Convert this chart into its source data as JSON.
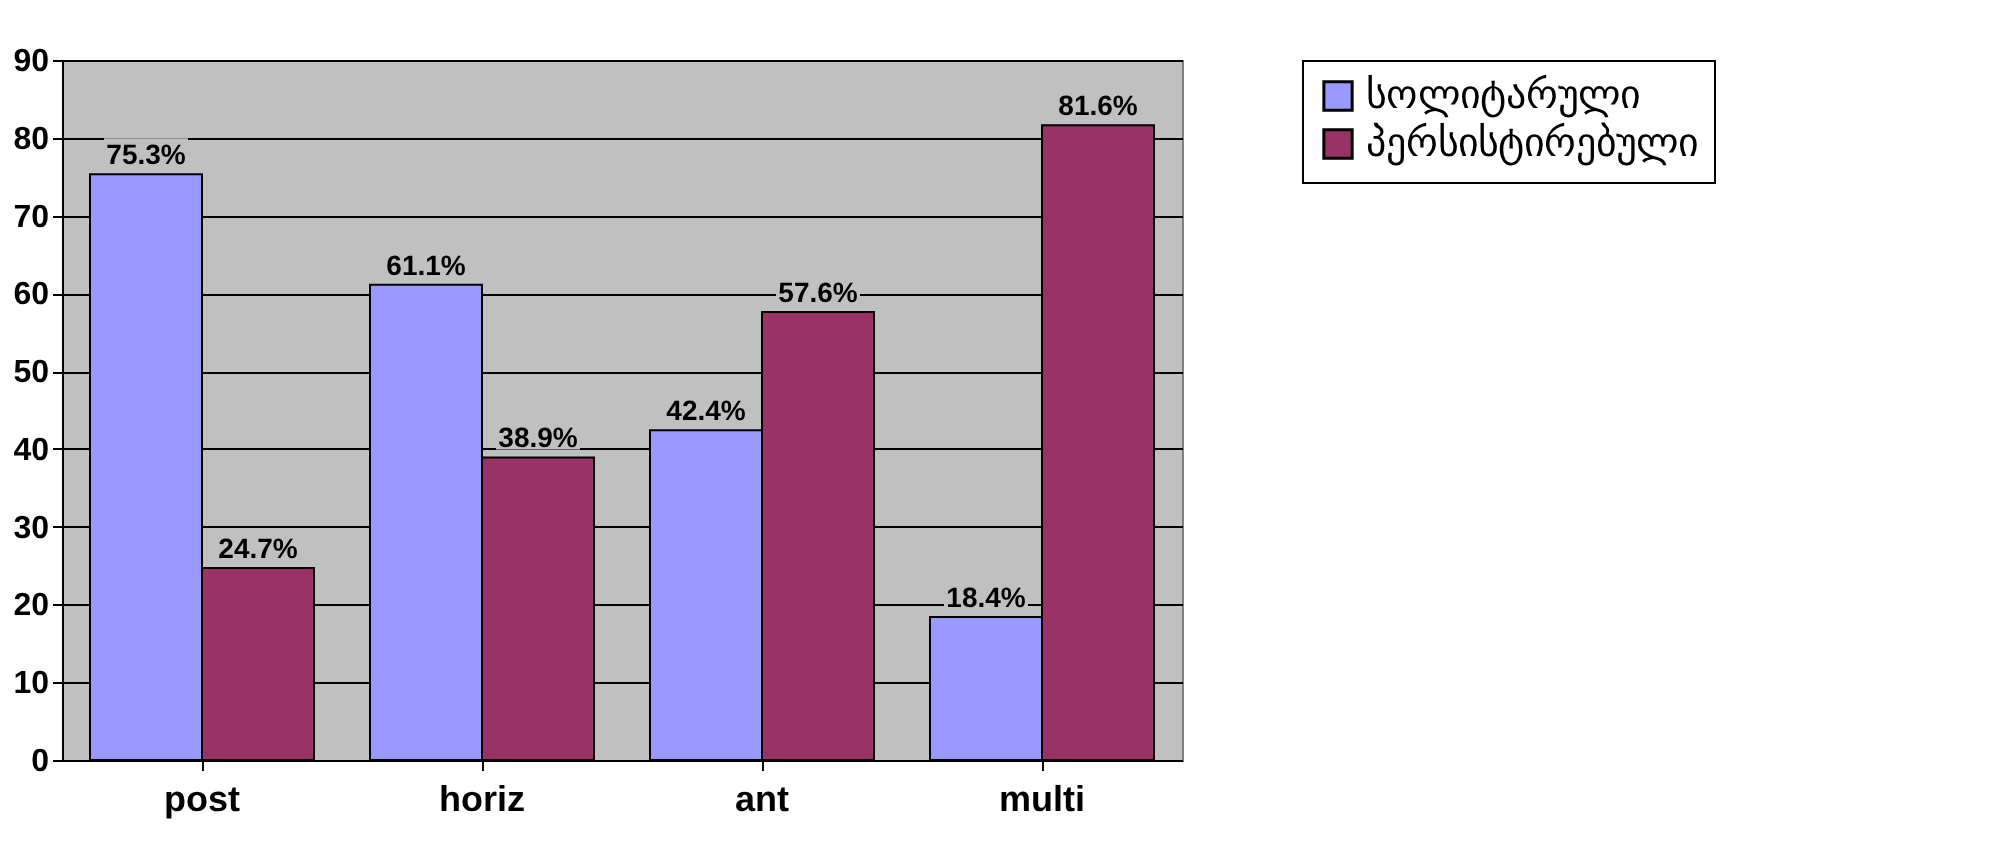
{
  "chart_data": {
    "type": "bar",
    "categories": [
      "post",
      "horiz",
      "ant",
      "multi"
    ],
    "series": [
      {
        "name": "სოლიტარული",
        "color": "#9999ff",
        "values": [
          75.3,
          61.1,
          42.4,
          18.4
        ],
        "value_labels": [
          "75.3%",
          "61.1%",
          "42.4%",
          "18.4%"
        ]
      },
      {
        "name": "პერსისტირებული",
        "color": "#993366",
        "values": [
          24.7,
          38.9,
          57.6,
          81.6
        ],
        "value_labels": [
          "24.7%",
          "38.9%",
          "57.6%",
          "81.6%"
        ]
      }
    ],
    "ylim": [
      0,
      90
    ],
    "yticks": [
      0,
      10,
      20,
      30,
      40,
      50,
      60,
      70,
      80,
      90
    ],
    "grid": "y",
    "legend": "right"
  }
}
